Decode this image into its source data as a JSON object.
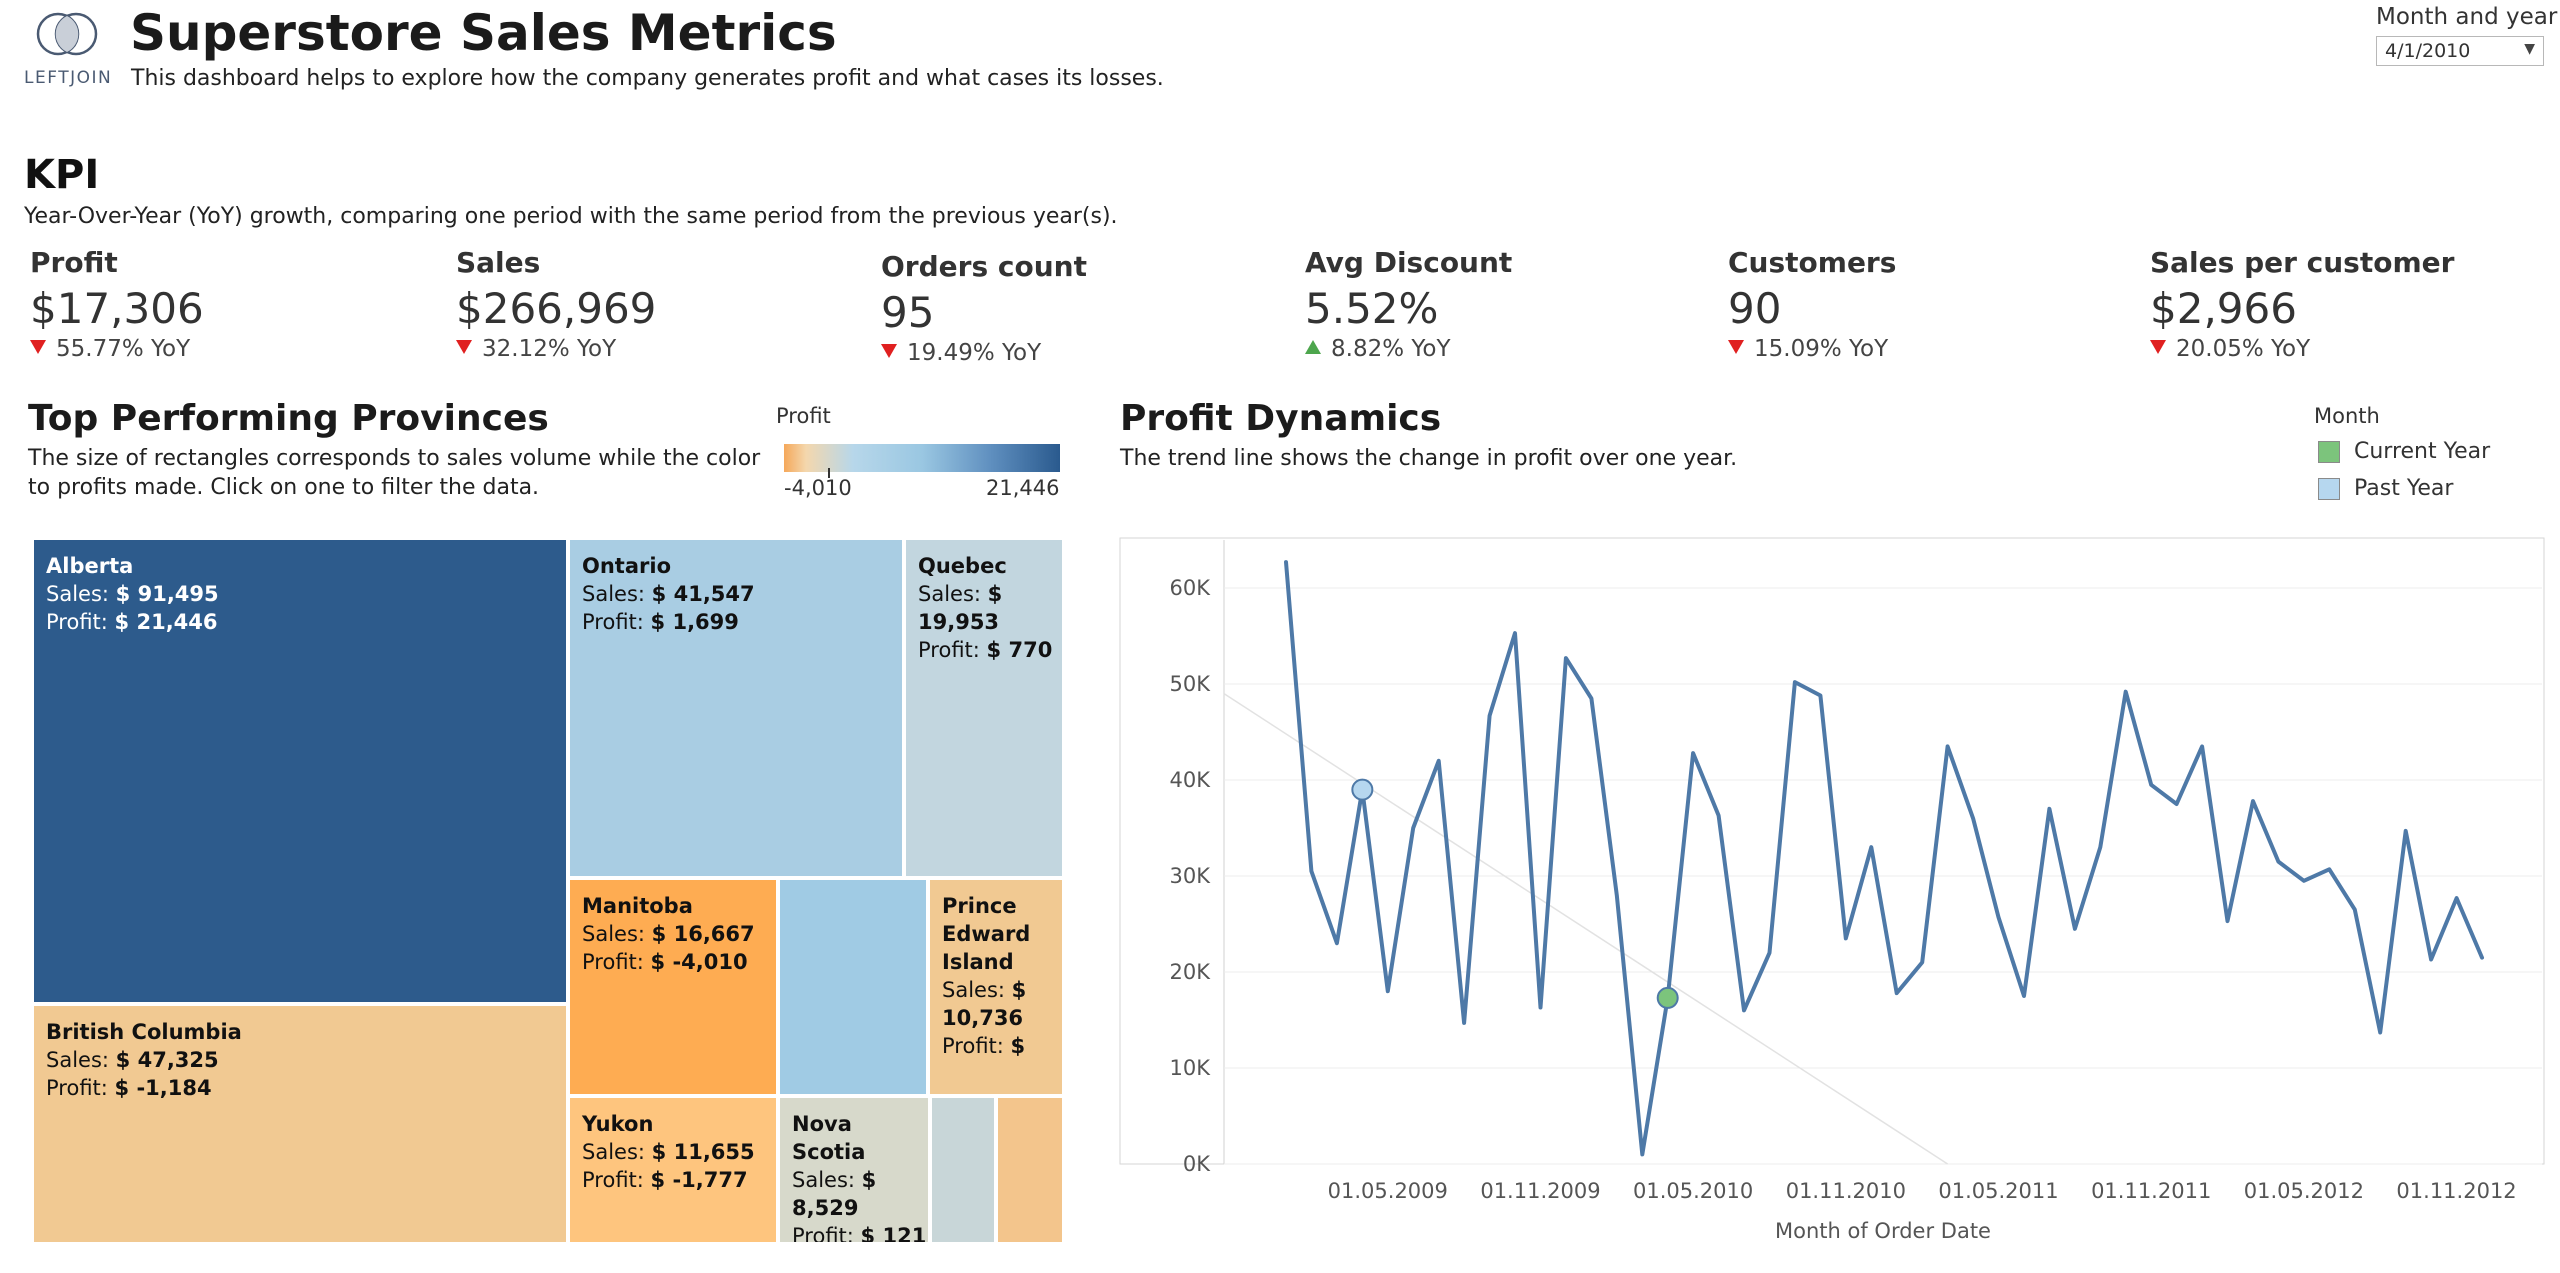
{
  "header": {
    "logo_text": "LEFTJOIN",
    "title": "Superstore Sales Metrics",
    "subtitle": "This dashboard helps to explore how the company generates profit and what cases its losses."
  },
  "filter": {
    "label": "Month and year",
    "value": "4/1/2010"
  },
  "kpi": {
    "heading": "KPI",
    "description": "Year-Over-Year (YoY) growth, comparing one period with the same period from the previous year(s).",
    "cards": [
      {
        "label": "Profit",
        "value": "$17,306",
        "yoy": "55.77% YoY",
        "direction": "down"
      },
      {
        "label": "Sales",
        "value": "$266,969",
        "yoy": "32.12% YoY",
        "direction": "down"
      },
      {
        "label": "Orders count",
        "value": "95",
        "yoy": "19.49% YoY",
        "direction": "down"
      },
      {
        "label": "Avg Discount",
        "value": "5.52%",
        "yoy": "8.82% YoY",
        "direction": "up"
      },
      {
        "label": "Customers",
        "value": "90",
        "yoy": "15.09% YoY",
        "direction": "down"
      },
      {
        "label": "Sales per customer",
        "value": "$2,966",
        "yoy": "20.05% YoY",
        "direction": "down"
      }
    ]
  },
  "provinces": {
    "title": "Top Performing Provinces",
    "description": "The size of rectangles corresponds to sales volume while the color to profits made. Click on one to filter the data.",
    "legend": {
      "label": "Profit",
      "min": "-4,010",
      "max": "21,446"
    },
    "sales_prefix": "Sales:",
    "profit_prefix": "Profit:",
    "tiles": [
      {
        "name": "Alberta",
        "sales": "$ 91,495",
        "profit": "$ 21,446",
        "color": "#2d5b8c"
      },
      {
        "name": "British Columbia",
        "sales": "$ 47,325",
        "profit": "$ -1,184",
        "color": "#f1c992"
      },
      {
        "name": "Ontario",
        "sales": "$ 41,547",
        "profit": "$ 1,699",
        "color": "#a9cde3"
      },
      {
        "name": "Quebec",
        "sales_line1": "$",
        "sales_line2": "19,953",
        "profit": "$ 770",
        "color": "#c2d6df"
      },
      {
        "name": "Manitoba",
        "sales": "$ 16,667",
        "profit": "$ -4,010",
        "color": "#feac52"
      },
      {
        "name": "",
        "color": "#a0cbe4"
      },
      {
        "name_line1": "Prince",
        "name_line2": "Edward",
        "name_line3": "Island",
        "sales_line1": "$",
        "sales_line2": "10,736",
        "profit_short": "$",
        "color": "#f1c992"
      },
      {
        "name": "Yukon",
        "sales": "$ 11,655",
        "profit": "$ -1,777",
        "color": "#fec57e"
      },
      {
        "name": "Nova Scotia",
        "sales_line1": "$",
        "sales_line2": "8,529",
        "profit": "$ 121",
        "color": "#d7d9cb"
      },
      {
        "name": "",
        "color": "#c8d6d8"
      },
      {
        "name": "",
        "color": "#f3c58c"
      }
    ]
  },
  "profit_dynamics": {
    "title": "Profit Dynamics",
    "description": "The trend line shows the change in profit over one year.",
    "legend": {
      "label": "Month",
      "items": [
        {
          "label": "Current Year",
          "color": "#7cc47c"
        },
        {
          "label": "Past Year",
          "color": "#b6d7ef"
        }
      ]
    }
  },
  "chart_data": {
    "type": "line",
    "title": "",
    "xlabel": "Month of Order Date",
    "ylabel": "",
    "x_tick_labels": [
      "01.05.2009",
      "01.11.2009",
      "01.05.2010",
      "01.11.2010",
      "01.05.2011",
      "01.11.2011",
      "01.05.2012",
      "01.11.2012"
    ],
    "y_tick_labels": [
      "0K",
      "10K",
      "20K",
      "30K",
      "40K",
      "50K",
      "60K"
    ],
    "ylim": [
      0,
      65000
    ],
    "x": [
      "01.01.2009",
      "01.02.2009",
      "01.03.2009",
      "01.04.2009",
      "01.05.2009",
      "01.06.2009",
      "01.07.2009",
      "01.08.2009",
      "01.09.2009",
      "01.10.2009",
      "01.11.2009",
      "01.12.2009",
      "01.01.2010",
      "01.02.2010",
      "01.03.2010",
      "01.04.2010",
      "01.05.2010",
      "01.06.2010",
      "01.07.2010",
      "01.08.2010",
      "01.09.2010",
      "01.10.2010",
      "01.11.2010",
      "01.12.2010",
      "01.01.2011",
      "01.02.2011",
      "01.03.2011",
      "01.04.2011",
      "01.05.2011",
      "01.06.2011",
      "01.07.2011",
      "01.08.2011",
      "01.09.2011",
      "01.10.2011",
      "01.11.2011",
      "01.12.2011",
      "01.01.2012",
      "01.02.2012",
      "01.03.2012",
      "01.04.2012",
      "01.05.2012",
      "01.06.2012",
      "01.07.2012",
      "01.08.2012",
      "01.09.2012",
      "01.10.2012",
      "01.11.2012",
      "01.12.2012"
    ],
    "series": [
      {
        "values": [
          62700,
          30500,
          23000,
          39000,
          18000,
          35000,
          42000,
          14700,
          46700,
          55300,
          16300,
          52700,
          48500,
          28000,
          1000,
          17300,
          42800,
          36300,
          16000,
          22000,
          50200,
          48800,
          23500,
          33000,
          17800,
          21000,
          43500,
          36000,
          25700,
          17500,
          37000,
          24500,
          33000,
          49200,
          39500,
          37500,
          43500,
          25300,
          37800,
          31500,
          29500,
          30700,
          26500,
          13700,
          34700,
          21300,
          27700,
          21500
        ]
      }
    ],
    "highlights": [
      {
        "series": "Past Year",
        "x": "01.04.2009",
        "y": 39000,
        "color": "#b6d7ef"
      },
      {
        "series": "Current Year",
        "x": "01.04.2010",
        "y": 17300,
        "color": "#7cc47c"
      }
    ],
    "trend_line": {
      "from": [
        "01.01.2009",
        49000
      ],
      "to": [
        "01.03.2011",
        0
      ]
    },
    "line_color": "#4e79a7",
    "grid": true
  }
}
